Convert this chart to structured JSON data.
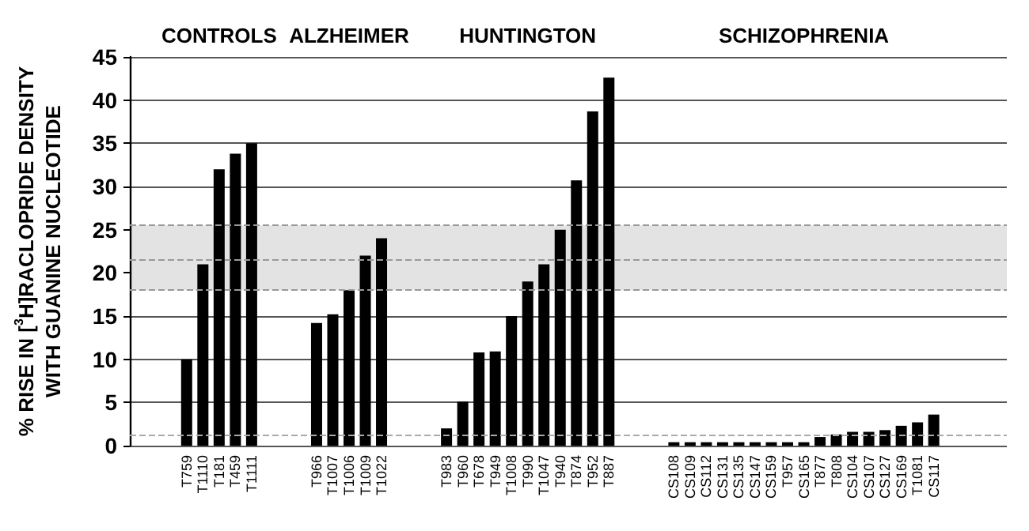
{
  "chart_data": {
    "type": "bar",
    "ylabel": "% RISE IN [$^{3}$H]RACLOPRIDE DENSITY\nWITH GUANINE NUCLEOTIDE",
    "annotations": [
      "CONTROLS",
      "ALZHEIMER",
      "HUNTINGTON",
      "SCHIZOPHRENIA"
    ],
    "categories": [
      null,
      null,
      null,
      "T759",
      "T1110",
      "T181",
      "T459",
      "T1111",
      null,
      null,
      null,
      "T966",
      "T1007",
      "T1006",
      "T1009",
      "T1022",
      null,
      null,
      null,
      "T983",
      "T960",
      "T678",
      "T949",
      "T1008",
      "T990",
      "T1047",
      "T940",
      "T874",
      "T952",
      "T887",
      null,
      null,
      null,
      "CS108",
      "CS109",
      "CS112",
      "CS131",
      "CS135",
      "CS147",
      "CS159",
      "T957",
      "CS165",
      "T877",
      "T808",
      "CS104",
      "CS107",
      "CS127",
      "CS169",
      "T1081",
      "CS117",
      null,
      null,
      null,
      null
    ],
    "values": [
      null,
      null,
      null,
      10,
      21,
      32,
      33.8,
      35,
      null,
      null,
      null,
      14.2,
      15.2,
      18,
      22,
      24,
      null,
      null,
      null,
      2,
      5.1,
      10.8,
      10.9,
      15,
      19,
      21,
      25,
      30.7,
      38.7,
      42.6,
      null,
      null,
      null,
      0.4,
      0.4,
      0.4,
      0.4,
      0.4,
      0.4,
      0.4,
      0.4,
      0.4,
      1,
      1.3,
      1.6,
      1.6,
      1.8,
      2.3,
      2.7,
      3.6,
      null,
      null,
      null,
      null
    ],
    "color": "#000000",
    "ylim": [
      0,
      45
    ],
    "yticks": [
      0,
      5,
      10,
      15,
      20,
      25,
      30,
      35,
      40,
      45
    ],
    "grid": "y",
    "bands": [
      {
        "axis": "y",
        "from": 18,
        "to": 25.5,
        "color": "#e3e3e3"
      }
    ],
    "ref_lines": [
      {
        "axis": "y",
        "value": 18,
        "color": "#999999",
        "line_style": "dashed"
      },
      {
        "axis": "y",
        "value": 21.6,
        "color": "#999999",
        "line_style": "dashed"
      },
      {
        "axis": "y",
        "value": 25.5,
        "color": "#999999",
        "line_style": "dashed"
      },
      {
        "axis": "y",
        "value": 1.2,
        "color": "#aaaaaa",
        "line_style": "dashed"
      }
    ]
  }
}
